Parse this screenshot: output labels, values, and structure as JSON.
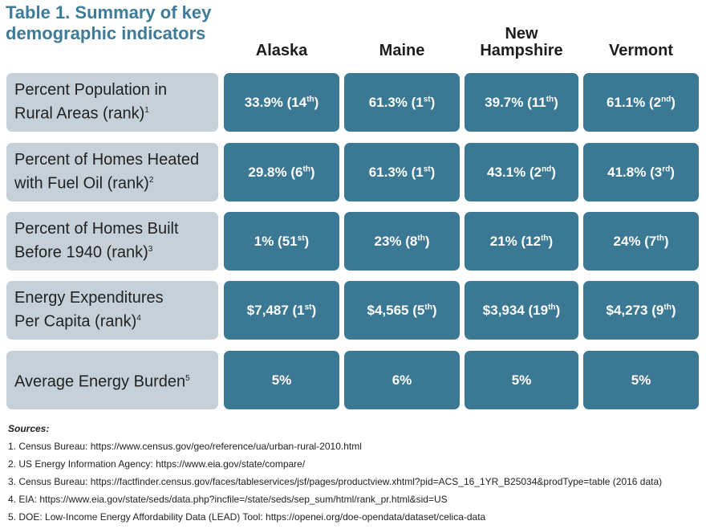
{
  "title_line1": "Table 1. Summary of key",
  "title_line2": "demographic indicators",
  "columns": [
    "Alaska",
    "Maine",
    "New Hampshire",
    "Vermont"
  ],
  "column_lines": [
    [
      "Alaska"
    ],
    [
      "Maine"
    ],
    [
      "New",
      "Hampshire"
    ],
    [
      "Vermont"
    ]
  ],
  "rows": [
    {
      "label1": "Percent Population in",
      "label2": "Rural Areas (rank)",
      "note": "1",
      "cells": [
        {
          "v": "33.9% (14",
          "s": "th",
          ")": ")"
        },
        {
          "v": "61.3% (1",
          "s": "st"
        },
        {
          "v": "39.7% (11",
          "s": "th"
        },
        {
          "v": "61.1% (2",
          "s": "nd"
        }
      ]
    },
    {
      "label1": "Percent of Homes Heated",
      "label2": "with Fuel Oil (rank)",
      "note": "2",
      "cells": [
        {
          "v": "29.8% (6",
          "s": "th"
        },
        {
          "v": "61.3% (1",
          "s": "st"
        },
        {
          "v": "43.1% (2",
          "s": "nd"
        },
        {
          "v": "41.8% (3",
          "s": "rd"
        }
      ]
    },
    {
      "label1": "Percent of Homes Built",
      "label2": "Before 1940 (rank)",
      "note": "3",
      "cells": [
        {
          "v": "1% (51",
          "s": "st"
        },
        {
          "v": "23% (8",
          "s": "th"
        },
        {
          "v": "21% (12",
          "s": "th"
        },
        {
          "v": "24% (7",
          "s": "th"
        }
      ]
    },
    {
      "label1": "Energy Expenditures",
      "label2": "Per Capita (rank)",
      "note": "4",
      "cells": [
        {
          "v": "$7,487 (1",
          "s": "st"
        },
        {
          "v": "$4,565 (5",
          "s": "th"
        },
        {
          "v": "$3,934 (19",
          "s": "th"
        },
        {
          "v": "$4,273 (9",
          "s": "th"
        }
      ]
    },
    {
      "label1": "Average Energy Burden",
      "label2": "",
      "note": "5",
      "cells": [
        {
          "v": "5%",
          "s": ""
        },
        {
          "v": "6%",
          "s": ""
        },
        {
          "v": "5%",
          "s": ""
        },
        {
          "v": "5%",
          "s": ""
        }
      ]
    }
  ],
  "sources_heading": "Sources:",
  "sources": [
    "1. Census Bureau: https://www.census.gov/geo/reference/ua/urban-rural-2010.html",
    "2. US Energy Information Agency: https://www.eia.gov/state/compare/",
    "3. Census Bureau: https://factfinder.census.gov/faces/tableservices/jsf/pages/productview.xhtml?pid=ACS_16_1YR_B25034&prodType=table (2016 data)",
    "4. EIA: https://www.eia.gov/state/seds/data.php?incfile=/state/seds/sep_sum/html/rank_pr.html&sid=US",
    "5. DOE: Low-Income Energy Affordability Data (LEAD) Tool: https://openei.org/doe-opendata/dataset/celica-data"
  ],
  "colors": {
    "title": "#3d7b98",
    "cell": "#3b7893",
    "label_bg": "#c5d0d8"
  }
}
